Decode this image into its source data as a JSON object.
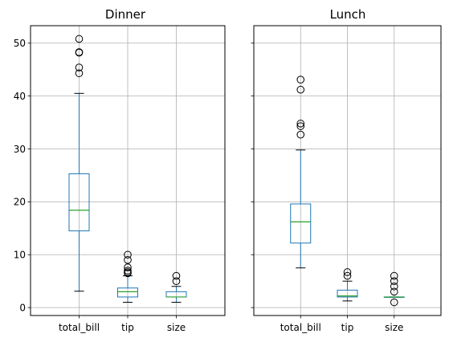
{
  "chart_data": [
    {
      "type": "box",
      "title": "Dinner",
      "categories": [
        "total_bill",
        "tip",
        "size"
      ],
      "ylim": [
        -1.5,
        53.3
      ],
      "yticks": [
        0,
        10,
        20,
        30,
        40,
        50
      ],
      "show_y_tick_labels": true,
      "grid": true,
      "colors": {
        "box": "#1f77b4",
        "whisker": "#1f77b4",
        "cap": "#000000",
        "median": "#2ca02c",
        "flier": "#000000",
        "grid": "#b0b0b0"
      },
      "boxes": [
        {
          "category": "total_bill",
          "whisker_low": 3.1,
          "q1": 14.5,
          "median": 18.4,
          "q3": 25.3,
          "whisker_high": 40.5,
          "fliers": [
            44.3,
            45.4,
            48.2,
            48.3,
            50.8
          ]
        },
        {
          "category": "tip",
          "whisker_low": 1.0,
          "q1": 2.0,
          "median": 3.0,
          "q3": 3.7,
          "whisker_high": 6.0,
          "fliers": [
            6.5,
            6.7,
            7.0,
            7.6,
            9.0,
            10.0
          ]
        },
        {
          "category": "size",
          "whisker_low": 1.0,
          "q1": 2.0,
          "median": 2.0,
          "q3": 3.0,
          "whisker_high": 4.0,
          "fliers": [
            5.0,
            6.0
          ]
        }
      ]
    },
    {
      "type": "box",
      "title": "Lunch",
      "categories": [
        "total_bill",
        "tip",
        "size"
      ],
      "ylim": [
        -1.5,
        53.3
      ],
      "yticks": [
        0,
        10,
        20,
        30,
        40,
        50
      ],
      "show_y_tick_labels": false,
      "grid": true,
      "colors": {
        "box": "#1f77b4",
        "whisker": "#1f77b4",
        "cap": "#000000",
        "median": "#2ca02c",
        "flier": "#000000",
        "grid": "#b0b0b0"
      },
      "boxes": [
        {
          "category": "total_bill",
          "whisker_low": 7.5,
          "q1": 12.2,
          "median": 16.2,
          "q3": 19.6,
          "whisker_high": 29.8,
          "fliers": [
            32.7,
            34.3,
            34.8,
            41.2,
            43.1
          ]
        },
        {
          "category": "tip",
          "whisker_low": 1.25,
          "q1": 2.0,
          "median": 2.2,
          "q3": 3.3,
          "whisker_high": 5.0,
          "fliers": [
            6.0,
            6.7
          ]
        },
        {
          "category": "size",
          "whisker_low": 2.0,
          "q1": 2.0,
          "median": 2.0,
          "q3": 2.0,
          "whisker_high": 2.0,
          "fliers": [
            1.0,
            3.0,
            4.0,
            5.0,
            6.0
          ]
        }
      ]
    }
  ]
}
